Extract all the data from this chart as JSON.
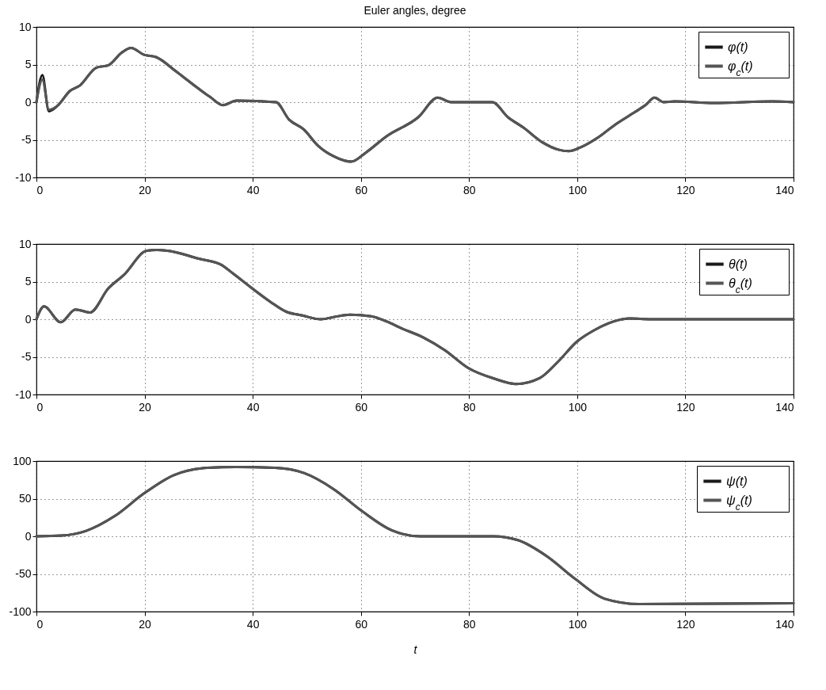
{
  "chart_data": [
    {
      "type": "line",
      "title": "Euler angles, degree",
      "x": [
        0,
        1.1,
        2.3,
        4,
        6.2,
        8,
        11.1,
        13.3,
        15.8,
        17.5,
        19.9,
        22.1,
        25.8,
        28.7,
        32.1,
        34.5,
        37,
        44.3,
        46.7,
        49.4,
        52.1,
        55,
        58.2,
        60.9,
        64.8,
        70.6,
        74.2,
        76.7,
        84.3,
        87.2,
        90.1,
        93.5,
        96.5,
        98.4,
        100.9,
        103.8,
        107.2,
        110.7,
        112.6,
        114.3,
        116,
        118,
        125.3,
        136.1,
        140
      ],
      "series": [
        {
          "name": "φ(t)",
          "color": "#1a1a1a",
          "values": [
            0,
            3.6,
            -1.2,
            -0.4,
            1.5,
            2.2,
            4.6,
            4.9,
            6.6,
            7.2,
            6.3,
            6.0,
            4.1,
            2.5,
            0.7,
            -0.4,
            0.2,
            0,
            -2.3,
            -3.6,
            -5.8,
            -7.2,
            -7.9,
            -6.7,
            -4.5,
            -2.0,
            0.6,
            0,
            0,
            -2.0,
            -3.4,
            -5.3,
            -6.3,
            -6.5,
            -5.9,
            -4.7,
            -2.9,
            -1.3,
            -0.4,
            0.6,
            0,
            0.1,
            -0.1,
            0.1,
            0
          ]
        },
        {
          "name": "φ$_{c}$(t)",
          "color": "#555555",
          "values": [
            0,
            3.0,
            -1.0,
            -0.4,
            1.5,
            2.2,
            4.6,
            4.9,
            6.6,
            7.2,
            6.3,
            6.0,
            4.1,
            2.5,
            0.7,
            -0.4,
            0.2,
            0,
            -2.3,
            -3.6,
            -5.8,
            -7.2,
            -7.9,
            -6.7,
            -4.5,
            -2.0,
            0.6,
            0,
            0,
            -2.0,
            -3.4,
            -5.3,
            -6.3,
            -6.5,
            -5.9,
            -4.7,
            -2.9,
            -1.3,
            -0.4,
            0.6,
            0,
            0.1,
            -0.1,
            0.1,
            0
          ]
        }
      ],
      "xlim": [
        0,
        140
      ],
      "xticks": [
        0,
        20,
        40,
        60,
        80,
        100,
        120,
        140
      ],
      "ylim": [
        -10,
        10
      ],
      "yticks": [
        -10,
        -5,
        0,
        5,
        10
      ],
      "grid": true,
      "legend": "top right"
    },
    {
      "type": "line",
      "x": [
        0,
        1.4,
        4.5,
        7.2,
        9.9,
        13.3,
        16.2,
        20.4,
        22.3,
        25.8,
        29.7,
        34,
        36.5,
        39.9,
        43.3,
        46.2,
        49.2,
        52.6,
        55,
        58,
        61.9,
        64.8,
        67.5,
        71.5,
        75.5,
        79.9,
        84.7,
        88.7,
        93.1,
        96.5,
        99.9,
        103.3,
        106.7,
        109.7,
        113.6,
        125.3,
        140
      ],
      "series": [
        {
          "name": "θ(t)",
          "color": "#1a1a1a",
          "values": [
            0,
            1.7,
            -0.4,
            1.3,
            0.9,
            4.1,
            5.9,
            9.1,
            9.2,
            8.9,
            8.1,
            7.3,
            6.0,
            4.1,
            2.3,
            1.0,
            0.5,
            0,
            0.3,
            0.6,
            0.4,
            -0.3,
            -1.2,
            -2.4,
            -4.1,
            -6.5,
            -7.9,
            -8.6,
            -7.8,
            -5.6,
            -3.0,
            -1.4,
            -0.3,
            0.1,
            0,
            0,
            0
          ]
        },
        {
          "name": "θ$_{c}$(t)",
          "color": "#555555",
          "values": [
            0,
            1.7,
            -0.4,
            1.3,
            0.9,
            4.1,
            5.9,
            9.1,
            9.2,
            8.9,
            8.1,
            7.3,
            6.0,
            4.1,
            2.3,
            1.0,
            0.5,
            0,
            0.3,
            0.6,
            0.4,
            -0.3,
            -1.2,
            -2.4,
            -4.1,
            -6.5,
            -7.9,
            -8.6,
            -7.8,
            -5.6,
            -3.0,
            -1.4,
            -0.3,
            0.1,
            0,
            0,
            0
          ]
        }
      ],
      "xlim": [
        0,
        140
      ],
      "xticks": [
        0,
        20,
        40,
        60,
        80,
        100,
        120,
        140
      ],
      "ylim": [
        -10,
        10
      ],
      "yticks": [
        -10,
        -5,
        0,
        5,
        10
      ],
      "grid": true,
      "legend": "top right"
    },
    {
      "type": "line",
      "xlabel": "t",
      "x": [
        0,
        4.7,
        9.1,
        14.5,
        19.9,
        25.3,
        31.6,
        37,
        44.1,
        49.5,
        54.9,
        60.3,
        65.7,
        71,
        84.5,
        89,
        94.3,
        99.7,
        105.1,
        111.4,
        140
      ],
      "series": [
        {
          "name": "ψ(t)",
          "color": "#1a1a1a",
          "values": [
            0,
            1,
            7,
            27,
            57,
            81,
            91,
            92,
            91,
            84,
            63,
            33,
            8,
            0,
            0,
            -5,
            -26,
            -57,
            -83,
            -90,
            -89
          ]
        },
        {
          "name": "ψ$_{c}$(t)",
          "color": "#555555",
          "values": [
            0,
            1,
            7,
            27,
            57,
            81,
            91,
            92,
            91,
            84,
            63,
            33,
            8,
            0,
            0,
            -5,
            -26,
            -57,
            -83,
            -90,
            -89
          ]
        }
      ],
      "xlim": [
        0,
        140
      ],
      "xticks": [
        0,
        20,
        40,
        60,
        80,
        100,
        120,
        140
      ],
      "ylim": [
        -100,
        100
      ],
      "yticks": [
        -100,
        -50,
        0,
        50,
        100
      ],
      "grid": true,
      "legend": "top right"
    }
  ]
}
